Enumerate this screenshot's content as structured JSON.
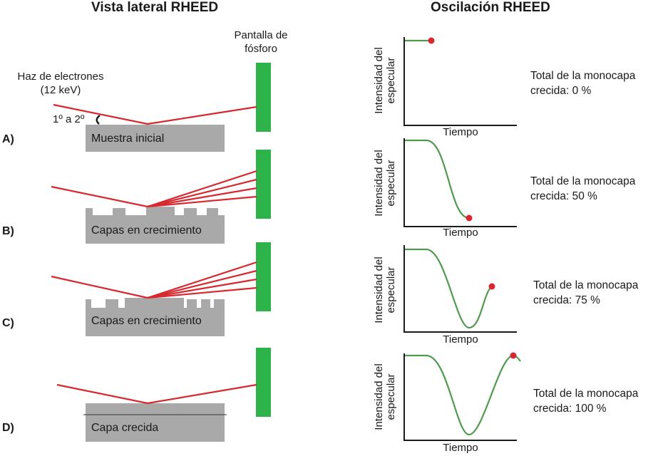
{
  "left_title": "Vista lateral RHEED",
  "right_title": "Oscilación RHEED",
  "screen_label": [
    "Pantalla de",
    "fósforo"
  ],
  "beam_label": [
    "Haz de electrones",
    "(12 keV)"
  ],
  "angle_label": "1º a 2º",
  "colors": {
    "beam": "#d7282f",
    "screen": "#2db34a",
    "sample": "#a9a9aa",
    "curve": "#4f9a4f",
    "dot": "#d7282f"
  },
  "rows": [
    {
      "letter": "A)",
      "sample_label": "Muestra inicial",
      "total": [
        "Total de la monocapa",
        "crecida: 0 %"
      ],
      "coverage_percent": 0
    },
    {
      "letter": "B)",
      "sample_label": "Capas en crecimiento",
      "total": [
        "Total de la monocapa",
        "crecida: 50 %"
      ],
      "coverage_percent": 50
    },
    {
      "letter": "C)",
      "sample_label": "Capas en crecimiento",
      "total": [
        "Total de la monocapa",
        "crecida: 75 %"
      ],
      "coverage_percent": 75
    },
    {
      "letter": "D)",
      "sample_label": "Capa crecida",
      "total": [
        "Total de la monocapa",
        "crecida: 100 %"
      ],
      "coverage_percent": 100
    }
  ],
  "axis": {
    "ylabel": [
      "Intensidad del",
      "especular"
    ],
    "xlabel": "Tiempo"
  }
}
